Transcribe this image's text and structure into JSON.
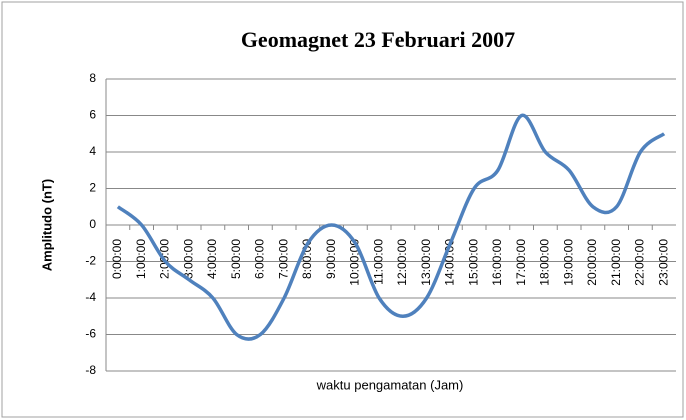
{
  "chart_data": {
    "type": "line",
    "title": "Geomagnet 23 Februari 2007",
    "x_label": "waktu pengamatan (Jam)",
    "y_label": "Amplitudo (nT)",
    "categories": [
      "0:00:00",
      "1:00:00",
      "2:00:00",
      "3:00:00",
      "4:00:00",
      "5:00:00",
      "6:00:00",
      "7:00:00",
      "8:00:00",
      "9:00:00",
      "10:00:00",
      "11:00:00",
      "12:00:00",
      "13:00:00",
      "14:00:00",
      "15:00:00",
      "16:00:00",
      "17:00:00",
      "18:00:00",
      "19:00:00",
      "20:00:00",
      "21:00:00",
      "22:00:00",
      "23:00:00"
    ],
    "series": [
      {
        "name": "Amplitudo",
        "color": "#4f81bd",
        "values": [
          1,
          0,
          -2,
          -3,
          -4,
          -6,
          -6,
          -4,
          -1,
          0,
          -1,
          -4,
          -5,
          -4,
          -1,
          2,
          3,
          6,
          4,
          3,
          1,
          1,
          4,
          5
        ]
      }
    ],
    "ylim": [
      -8,
      8
    ],
    "yticks": [
      -8,
      -6,
      -4,
      -2,
      0,
      2,
      4,
      6,
      8
    ],
    "grid": true,
    "smooth": true
  }
}
